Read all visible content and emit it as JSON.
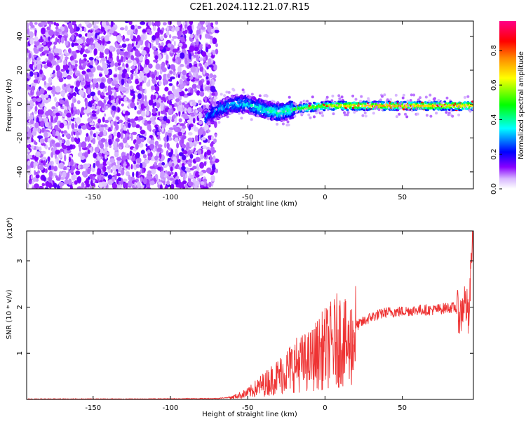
{
  "title": "C2E1.2024.112.21.07.R15",
  "chart_data": [
    {
      "type": "heatmap",
      "xlabel": "Height of straight line (km)",
      "ylabel": "Frequency (Hz)",
      "xlim": [
        -193,
        96
      ],
      "ylim": [
        -50,
        49
      ],
      "xticks": [
        -150,
        -100,
        -50,
        0,
        50
      ],
      "yticks": [
        -40,
        -20,
        0,
        20,
        40
      ],
      "colorbar": {
        "label": "Normalized spectral amplitude",
        "range": [
          0,
          0.97
        ],
        "ticks": [
          "0.0",
          "0.2",
          "0.4",
          "0.6",
          "0.8"
        ],
        "tick_values": [
          0.0,
          0.2,
          0.4,
          0.6,
          0.8
        ],
        "colors": [
          "#ffffff",
          "#8800ff",
          "#0000ff",
          "#00ffff",
          "#00ff00",
          "#ffff00",
          "#ff8800",
          "#ff0000",
          "#ff0088"
        ]
      },
      "signal_track": {
        "x": [
          -77,
          -70,
          -60,
          -50,
          -40,
          -30,
          -20,
          -10,
          0,
          10,
          20,
          40,
          60,
          80,
          94
        ],
        "y": [
          -8,
          -4,
          0,
          0,
          -3,
          -5,
          -3,
          -2,
          -1,
          -1,
          -1,
          -1,
          -1,
          -1,
          -1
        ]
      },
      "noise_region_end_x": -70
    },
    {
      "type": "line",
      "xlabel": "Height of straight line (km)",
      "ylabel": "SNR (10 * v/v)",
      "multiplier": "(x10⁴)",
      "xlim": [
        -193,
        96
      ],
      "ylim": [
        0,
        3.65
      ],
      "xticks": [
        -150,
        -100,
        -50,
        0,
        50
      ],
      "yticks": [
        1,
        2,
        3
      ],
      "color": "#ee3333",
      "series": [
        {
          "x": [
            -193,
            -120,
            -70,
            -60,
            -50,
            -40,
            -30,
            -20,
            -10,
            0,
            5,
            10,
            15,
            20,
            30,
            40,
            50,
            60,
            70,
            80,
            85,
            88,
            90,
            92,
            93,
            94,
            95
          ],
          "y": [
            0.01,
            0.01,
            0.02,
            0.05,
            0.15,
            0.35,
            0.55,
            0.8,
            0.9,
            1.2,
            1.3,
            1.45,
            1.2,
            1.6,
            1.8,
            1.9,
            1.92,
            1.95,
            1.95,
            2.0,
            2.0,
            1.85,
            2.2,
            2.0,
            1.7,
            2.5,
            3.4
          ]
        }
      ]
    }
  ]
}
